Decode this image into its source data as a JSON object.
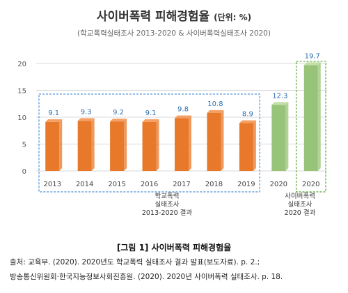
{
  "header": {
    "title": "사이버폭력 피해경험율",
    "unit": "(단위: %)",
    "subtitle": "(학교폭력실태조사 2013-2020 & 사이버폭력실태조사 2020)"
  },
  "chart_data": {
    "type": "bar",
    "categories": [
      "2013",
      "2014",
      "2015",
      "2016",
      "2017",
      "2018",
      "2019",
      "2020",
      "2020"
    ],
    "values": [
      9.1,
      9.3,
      9.2,
      9.1,
      9.8,
      10.8,
      8.9,
      12.3,
      19.7
    ],
    "value_labels": [
      "9.1",
      "9.3",
      "9.2",
      "9.1",
      "9.8",
      "10.8",
      "8.9",
      "12.3",
      "19.7"
    ],
    "ylim": [
      0,
      20
    ],
    "yticks": [
      "0",
      "5",
      "10",
      "15",
      "20"
    ],
    "grid": true,
    "colors": {
      "school": "#e8782a",
      "school_top": "#f4a064",
      "cyber": "#97c478",
      "cyber_top": "#c4e0a8",
      "box_blue": "#4a90d9",
      "box_green": "#5aa63a",
      "label_blue": "#2c6fb0"
    },
    "groups": [
      {
        "label_lines": [
          "학교폭력",
          "실태조사",
          "2013-2020 결과"
        ]
      },
      {
        "label_lines": [
          "사이버폭력",
          "실태조사",
          "2020 결과"
        ]
      }
    ]
  },
  "caption": {
    "figure": "[그림 1] 사이버폭력 피해경험율",
    "source_line1": "출처: 교육부. (2020). 2020년도 학교폭력 실태조사 결과 발표(보도자료). p. 2.;",
    "source_line2": "방송통신위원회·한국지능정보사회진흥원. (2020). 2020년 사이버폭력 실태조사. p. 18."
  }
}
